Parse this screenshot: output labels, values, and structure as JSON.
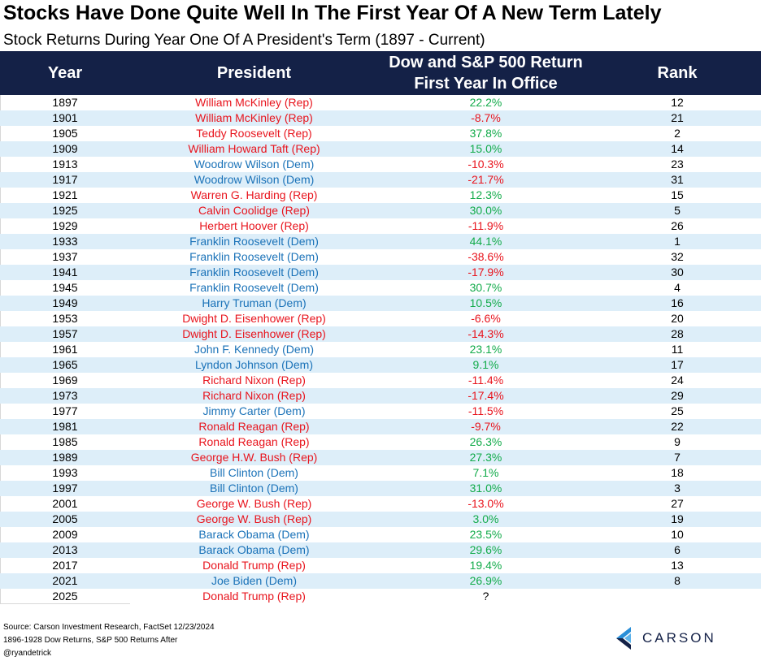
{
  "title": "Stocks Have Done Quite Well In The First Year Of A New Term Lately",
  "subtitle": "Stock Returns During Year One Of A President's Term (1897 - Current)",
  "header": {
    "year": "Year",
    "president": "President",
    "return_line1": "Dow and S&P 500 Return",
    "return_line2": "First Year In Office",
    "rank": "Rank"
  },
  "colors": {
    "header_bg": "#142147",
    "republican": "#e8141d",
    "democrat": "#1a72b8",
    "positive": "#12ab4a",
    "negative": "#e8141d",
    "row_alt": "#ddeef9"
  },
  "chart_data": {
    "type": "table",
    "columns": [
      "Year",
      "President",
      "Dow and S&P 500 Return First Year In Office",
      "Rank"
    ],
    "rows": [
      {
        "year": "1897",
        "president": "William McKinley (Rep)",
        "party": "Rep",
        "return": "22.2%",
        "rank": "12"
      },
      {
        "year": "1901",
        "president": "William McKinley (Rep)",
        "party": "Rep",
        "return": "-8.7%",
        "rank": "21"
      },
      {
        "year": "1905",
        "president": "Teddy Roosevelt (Rep)",
        "party": "Rep",
        "return": "37.8%",
        "rank": "2"
      },
      {
        "year": "1909",
        "president": "William Howard Taft (Rep)",
        "party": "Rep",
        "return": "15.0%",
        "rank": "14"
      },
      {
        "year": "1913",
        "president": "Woodrow Wilson (Dem)",
        "party": "Dem",
        "return": "-10.3%",
        "rank": "23"
      },
      {
        "year": "1917",
        "president": "Woodrow Wilson (Dem)",
        "party": "Dem",
        "return": "-21.7%",
        "rank": "31"
      },
      {
        "year": "1921",
        "president": "Warren G. Harding (Rep)",
        "party": "Rep",
        "return": "12.3%",
        "rank": "15"
      },
      {
        "year": "1925",
        "president": "Calvin Coolidge (Rep)",
        "party": "Rep",
        "return": "30.0%",
        "rank": "5"
      },
      {
        "year": "1929",
        "president": "Herbert Hoover (Rep)",
        "party": "Rep",
        "return": "-11.9%",
        "rank": "26"
      },
      {
        "year": "1933",
        "president": "Franklin Roosevelt (Dem)",
        "party": "Dem",
        "return": "44.1%",
        "rank": "1"
      },
      {
        "year": "1937",
        "president": "Franklin Roosevelt (Dem)",
        "party": "Dem",
        "return": "-38.6%",
        "rank": "32"
      },
      {
        "year": "1941",
        "president": "Franklin Roosevelt (Dem)",
        "party": "Dem",
        "return": "-17.9%",
        "rank": "30"
      },
      {
        "year": "1945",
        "president": "Franklin Roosevelt (Dem)",
        "party": "Dem",
        "return": "30.7%",
        "rank": "4"
      },
      {
        "year": "1949",
        "president": "Harry Truman (Dem)",
        "party": "Dem",
        "return": "10.5%",
        "rank": "16"
      },
      {
        "year": "1953",
        "president": "Dwight D. Eisenhower (Rep)",
        "party": "Rep",
        "return": "-6.6%",
        "rank": "20"
      },
      {
        "year": "1957",
        "president": "Dwight D. Eisenhower (Rep)",
        "party": "Rep",
        "return": "-14.3%",
        "rank": "28"
      },
      {
        "year": "1961",
        "president": "John F. Kennedy (Dem)",
        "party": "Dem",
        "return": "23.1%",
        "rank": "11"
      },
      {
        "year": "1965",
        "president": "Lyndon Johnson (Dem)",
        "party": "Dem",
        "return": "9.1%",
        "rank": "17"
      },
      {
        "year": "1969",
        "president": "Richard Nixon (Rep)",
        "party": "Rep",
        "return": "-11.4%",
        "rank": "24"
      },
      {
        "year": "1973",
        "president": "Richard Nixon (Rep)",
        "party": "Rep",
        "return": "-17.4%",
        "rank": "29"
      },
      {
        "year": "1977",
        "president": "Jimmy Carter (Dem)",
        "party": "Dem",
        "return": "-11.5%",
        "rank": "25"
      },
      {
        "year": "1981",
        "president": "Ronald Reagan (Rep)",
        "party": "Rep",
        "return": "-9.7%",
        "rank": "22"
      },
      {
        "year": "1985",
        "president": "Ronald Reagan (Rep)",
        "party": "Rep",
        "return": "26.3%",
        "rank": "9"
      },
      {
        "year": "1989",
        "president": "George H.W. Bush (Rep)",
        "party": "Rep",
        "return": "27.3%",
        "rank": "7"
      },
      {
        "year": "1993",
        "president": "Bill Clinton (Dem)",
        "party": "Dem",
        "return": "7.1%",
        "rank": "18"
      },
      {
        "year": "1997",
        "president": "Bill Clinton (Dem)",
        "party": "Dem",
        "return": "31.0%",
        "rank": "3"
      },
      {
        "year": "2001",
        "president": "George W. Bush (Rep)",
        "party": "Rep",
        "return": "-13.0%",
        "rank": "27"
      },
      {
        "year": "2005",
        "president": "George W. Bush (Rep)",
        "party": "Rep",
        "return": "3.0%",
        "rank": "19"
      },
      {
        "year": "2009",
        "president": "Barack Obama (Dem)",
        "party": "Dem",
        "return": "23.5%",
        "rank": "10"
      },
      {
        "year": "2013",
        "president": "Barack Obama (Dem)",
        "party": "Dem",
        "return": "29.6%",
        "rank": "6"
      },
      {
        "year": "2017",
        "president": "Donald Trump (Rep)",
        "party": "Rep",
        "return": "19.4%",
        "rank": "13"
      },
      {
        "year": "2021",
        "president": "Joe Biden (Dem)",
        "party": "Dem",
        "return": "26.9%",
        "rank": "8"
      },
      {
        "year": "2025",
        "president": "Donald Trump (Rep)",
        "party": "Rep",
        "return": "?",
        "rank": ""
      }
    ]
  },
  "footer": {
    "source": "Source: Carson Investment Research, FactSet 12/23/2024",
    "note": "1896-1928 Dow Returns, S&P 500 Returns After",
    "handle": "@ryandetrick",
    "logo_text": "CARSON",
    "logo_icon": "carson-chevron-logo-icon"
  }
}
